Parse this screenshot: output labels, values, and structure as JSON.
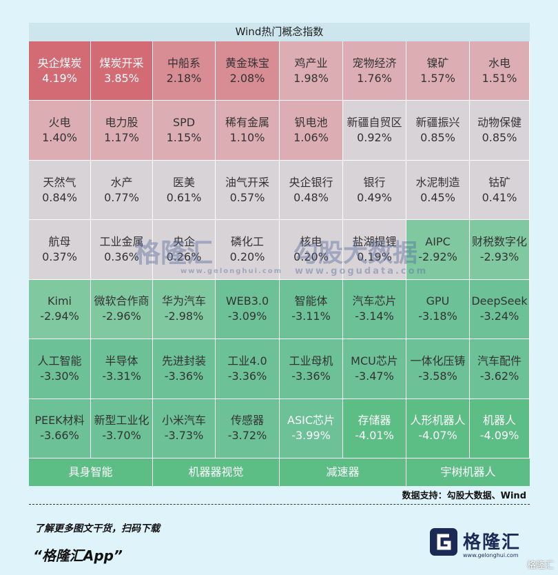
{
  "chart_data": {
    "type": "heatmap",
    "title": "Wind热门概念指数",
    "cells": [
      {
        "name": "央企煤炭",
        "value": "4.19%"
      },
      {
        "name": "煤炭开采",
        "value": "3.85%"
      },
      {
        "name": "中船系",
        "value": "2.18%"
      },
      {
        "name": "黄金珠宝",
        "value": "2.08%"
      },
      {
        "name": "鸡产业",
        "value": "1.98%"
      },
      {
        "name": "宠物经济",
        "value": "1.76%"
      },
      {
        "name": "镍矿",
        "value": "1.57%"
      },
      {
        "name": "水电",
        "value": "1.51%"
      },
      {
        "name": "火电",
        "value": "1.40%"
      },
      {
        "name": "电力股",
        "value": "1.17%"
      },
      {
        "name": "SPD",
        "value": "1.15%"
      },
      {
        "name": "稀有金属",
        "value": "1.10%"
      },
      {
        "name": "钒电池",
        "value": "1.06%"
      },
      {
        "name": "新疆自贸区",
        "value": "0.92%"
      },
      {
        "name": "新疆振兴",
        "value": "0.85%"
      },
      {
        "name": "动物保健",
        "value": "0.85%"
      },
      {
        "name": "天然气",
        "value": "0.84%"
      },
      {
        "name": "水产",
        "value": "0.77%"
      },
      {
        "name": "医美",
        "value": "0.61%"
      },
      {
        "name": "油气开采",
        "value": "0.57%"
      },
      {
        "name": "央企银行",
        "value": "0.48%"
      },
      {
        "name": "银行",
        "value": "0.49%"
      },
      {
        "name": "水泥制造",
        "value": "0.45%"
      },
      {
        "name": "钴矿",
        "value": "0.41%"
      },
      {
        "name": "航母",
        "value": "0.37%"
      },
      {
        "name": "工业金属",
        "value": "0.36%"
      },
      {
        "name": "央企",
        "value": "0.26%"
      },
      {
        "name": "磷化工",
        "value": "0.20%"
      },
      {
        "name": "核电",
        "value": "0.20%"
      },
      {
        "name": "盐湖提锂",
        "value": "0.19%"
      },
      {
        "name": "AIPC",
        "value": "-2.92%"
      },
      {
        "name": "财税数字化",
        "value": "-2.93%"
      },
      {
        "name": "Kimi",
        "value": "-2.94%"
      },
      {
        "name": "微软合作商",
        "value": "-2.96%"
      },
      {
        "name": "华为汽车",
        "value": "-2.98%"
      },
      {
        "name": "WEB3.0",
        "value": "-3.09%"
      },
      {
        "name": "智能体",
        "value": "-3.11%"
      },
      {
        "name": "汽车芯片",
        "value": "-3.14%"
      },
      {
        "name": "GPU",
        "value": "-3.18%"
      },
      {
        "name": "DeepSeek",
        "value": "-3.24%"
      },
      {
        "name": "人工智能",
        "value": "-3.30%"
      },
      {
        "name": "半导体",
        "value": "-3.31%"
      },
      {
        "name": "先进封装",
        "value": "-3.36%"
      },
      {
        "name": "工业4.0",
        "value": "-3.36%"
      },
      {
        "name": "工业母机",
        "value": "-3.36%"
      },
      {
        "name": "MCU芯片",
        "value": "-3.47%"
      },
      {
        "name": "一体化压铸",
        "value": "-3.58%"
      },
      {
        "name": "汽车配件",
        "value": "-3.62%"
      },
      {
        "name": "PEEK材料",
        "value": "-3.66%"
      },
      {
        "name": "新型工业化",
        "value": "-3.70%"
      },
      {
        "name": "小米汽车",
        "value": "-3.73%"
      },
      {
        "name": "传感器",
        "value": "-3.72%"
      },
      {
        "name": "ASIC芯片",
        "value": "-3.99%"
      },
      {
        "name": "存储器",
        "value": "-4.01%"
      },
      {
        "name": "人形机器人",
        "value": "-4.07%"
      },
      {
        "name": "机器人",
        "value": "-4.09%"
      }
    ],
    "bottom_labels": [
      "具身智能",
      "机器器视觉",
      "减速器",
      "宇树机器人"
    ]
  },
  "source_text": "数据支持：勾股大数据、Wind",
  "promo_line": "了解更多图文干货，扫码下载",
  "app_name": "“格隆汇App”",
  "logo_text": "格隆汇",
  "logo_url": "www.gelonghui.com",
  "corner_mark": "格隆汇",
  "watermark_left": "格隆汇",
  "watermark_left_url": "www.gelonghui.com",
  "watermark_right": "勾股大数据",
  "watermark_right_url": "www.gogudata.com",
  "colors": {
    "pos_strong": "#d36b74",
    "pos_mid": "#d88c94",
    "pos_light": "#dcaeb3",
    "neutral": "#d8d3d6",
    "neg_light": "#80c9a0",
    "neg_mid": "#6cc196",
    "neg_strong": "#5cbd85",
    "bottom": "#5cbd85"
  }
}
